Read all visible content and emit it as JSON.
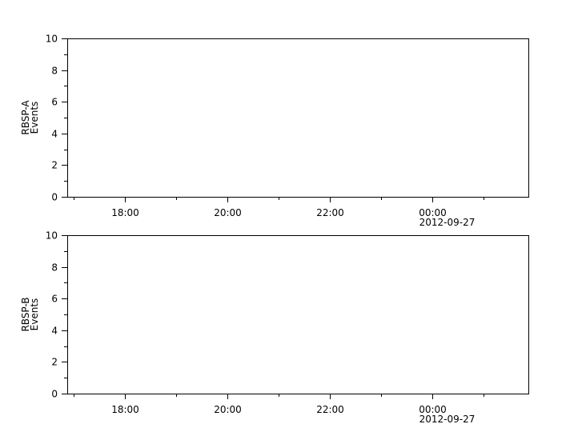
{
  "chart_data": [
    {
      "type": "line",
      "ylabel_lines": [
        "RBSP-A",
        "Events"
      ],
      "ylim": [
        0,
        10
      ],
      "y_major_ticks": [
        0,
        2,
        4,
        6,
        8,
        10
      ],
      "y_minor_ticks": [
        1,
        3,
        5,
        7,
        9
      ],
      "xlim": [
        "2012-09-26T16:52:30",
        "2012-09-27T01:52:30"
      ],
      "x_major_ticks": [
        {
          "time": "2012-09-26T18:00",
          "label": "18:00",
          "sublabel": ""
        },
        {
          "time": "2012-09-26T20:00",
          "label": "20:00",
          "sublabel": ""
        },
        {
          "time": "2012-09-26T22:00",
          "label": "22:00",
          "sublabel": ""
        },
        {
          "time": "2012-09-27T00:00",
          "label": "00:00",
          "sublabel": "2012-09-27"
        }
      ],
      "x_minor_ticks": [
        "2012-09-26T17:00",
        "2012-09-26T19:00",
        "2012-09-26T21:00",
        "2012-09-26T23:00",
        "2012-09-27T01:00"
      ],
      "series": [],
      "grid": false
    },
    {
      "type": "line",
      "ylabel_lines": [
        "RBSP-B",
        "Events"
      ],
      "ylim": [
        0,
        10
      ],
      "y_major_ticks": [
        0,
        2,
        4,
        6,
        8,
        10
      ],
      "y_minor_ticks": [
        1,
        3,
        5,
        7,
        9
      ],
      "xlim": [
        "2012-09-26T16:52:30",
        "2012-09-27T01:52:30"
      ],
      "x_major_ticks": [
        {
          "time": "2012-09-26T18:00",
          "label": "18:00",
          "sublabel": ""
        },
        {
          "time": "2012-09-26T20:00",
          "label": "20:00",
          "sublabel": ""
        },
        {
          "time": "2012-09-26T22:00",
          "label": "22:00",
          "sublabel": ""
        },
        {
          "time": "2012-09-27T00:00",
          "label": "00:00",
          "sublabel": "2012-09-27"
        }
      ],
      "x_minor_ticks": [
        "2012-09-26T17:00",
        "2012-09-26T19:00",
        "2012-09-26T21:00",
        "2012-09-26T23:00",
        "2012-09-27T01:00"
      ],
      "series": [],
      "grid": false
    }
  ]
}
